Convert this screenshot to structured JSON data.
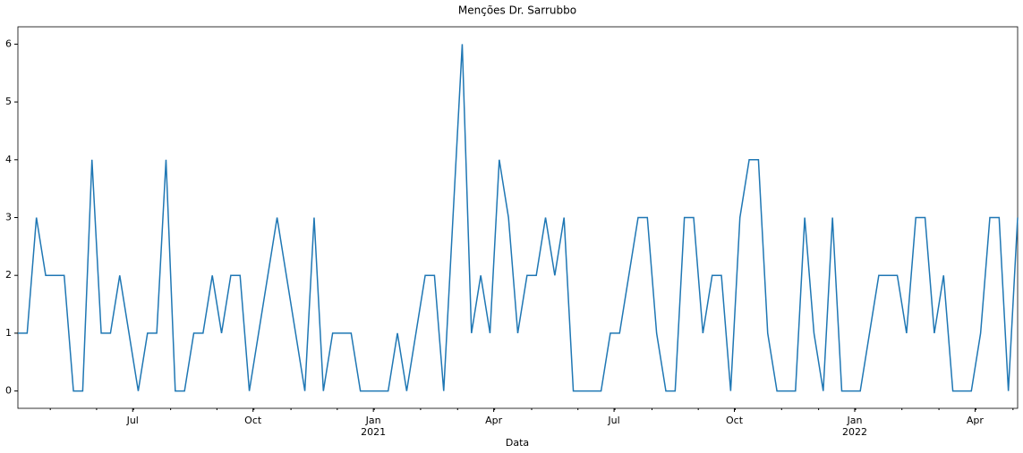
{
  "chart_data": {
    "type": "line",
    "title": "Menções Dr. Sarrubbo",
    "xlabel": "Data",
    "x": [
      "2020-04",
      "2020-04",
      "2020-04",
      "2020-04",
      "2020-05",
      "2020-05",
      "2020-05",
      "2020-05",
      "2020-05",
      "2020-06",
      "2020-06",
      "2020-06",
      "2020-06",
      "2020-07",
      "2020-07",
      "2020-07",
      "2020-07",
      "2020-08",
      "2020-08",
      "2020-08",
      "2020-08",
      "2020-08",
      "2020-09",
      "2020-09",
      "2020-09",
      "2020-09",
      "2020-10",
      "2020-10",
      "2020-10",
      "2020-10",
      "2020-11",
      "2020-11",
      "2020-11",
      "2020-11",
      "2020-11",
      "2020-12",
      "2020-12",
      "2020-12",
      "2020-12",
      "2021-01",
      "2021-01",
      "2021-01",
      "2021-01",
      "2021-01",
      "2021-02",
      "2021-02",
      "2021-02",
      "2021-02",
      "2021-03",
      "2021-03",
      "2021-03",
      "2021-03",
      "2021-04",
      "2021-04",
      "2021-04",
      "2021-04",
      "2021-05",
      "2021-05",
      "2021-05",
      "2021-05",
      "2021-05",
      "2021-06",
      "2021-06",
      "2021-06",
      "2021-06",
      "2021-07",
      "2021-07",
      "2021-07",
      "2021-07",
      "2021-08",
      "2021-08",
      "2021-08",
      "2021-08",
      "2021-08",
      "2021-09",
      "2021-09",
      "2021-09",
      "2021-09",
      "2021-10",
      "2021-10",
      "2021-10",
      "2021-10",
      "2021-10",
      "2021-11",
      "2021-11",
      "2021-11",
      "2021-11",
      "2021-12",
      "2021-12",
      "2021-12",
      "2021-12",
      "2022-01",
      "2022-01",
      "2022-01",
      "2022-01",
      "2022-01",
      "2022-02",
      "2022-02",
      "2022-02",
      "2022-02",
      "2022-03",
      "2022-03",
      "2022-03",
      "2022-03",
      "2022-04",
      "2022-04",
      "2022-04",
      "2022-04",
      "2022-05"
    ],
    "series": [
      {
        "color": "#1f77b4",
        "values": [
          1,
          1,
          3,
          2,
          2,
          2,
          0,
          0,
          4,
          1,
          1,
          2,
          1,
          0,
          1,
          1,
          4,
          0,
          0,
          1,
          1,
          2,
          1,
          2,
          2,
          0,
          1,
          2,
          3,
          2,
          1,
          0,
          3,
          0,
          1,
          1,
          1,
          0,
          0,
          0,
          0,
          1,
          0,
          1,
          2,
          2,
          0,
          3,
          6,
          1,
          2,
          1,
          4,
          3,
          1,
          2,
          2,
          3,
          2,
          3,
          0,
          0,
          0,
          0,
          1,
          1,
          2,
          3,
          3,
          1,
          0,
          0,
          3,
          3,
          1,
          2,
          2,
          0,
          3,
          4,
          4,
          1,
          0,
          0,
          0,
          3,
          1,
          0,
          3,
          0,
          0,
          0,
          1,
          2,
          2,
          2,
          1,
          3,
          3,
          1,
          2,
          0,
          0,
          0,
          1,
          3,
          3,
          0,
          3
        ]
      }
    ],
    "xticks": [
      {
        "value": "2020-07",
        "label": "Jul"
      },
      {
        "value": "2020-10",
        "label": "Oct"
      },
      {
        "value": "2021-01",
        "label": "Jan",
        "year": "2021"
      },
      {
        "value": "2021-04",
        "label": "Apr"
      },
      {
        "value": "2021-07",
        "label": "Jul"
      },
      {
        "value": "2021-10",
        "label": "Oct"
      },
      {
        "value": "2022-01",
        "label": "Jan",
        "year": "2022"
      },
      {
        "value": "2022-04",
        "label": "Apr"
      }
    ],
    "ylim": [
      -0.3,
      6.3
    ],
    "yticks": [
      0,
      1,
      2,
      3,
      4,
      5,
      6
    ]
  }
}
